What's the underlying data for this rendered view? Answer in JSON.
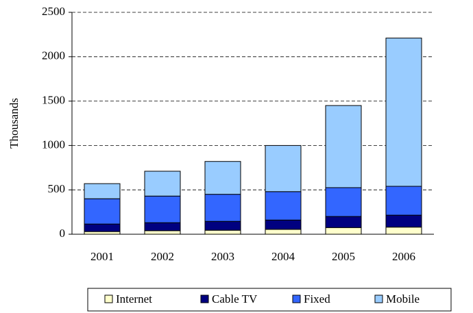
{
  "chart_data": {
    "type": "bar",
    "stacked": true,
    "y_label": "Thousands",
    "categories": [
      "2001",
      "2002",
      "2003",
      "2004",
      "2005",
      "2006"
    ],
    "series": [
      {
        "name": "Internet",
        "color": "#ffffcc",
        "values": [
          30,
          40,
          45,
          55,
          75,
          80
        ]
      },
      {
        "name": "Cable TV",
        "color": "#000080",
        "values": [
          85,
          90,
          100,
          105,
          125,
          135
        ]
      },
      {
        "name": "Fixed",
        "color": "#3366ff",
        "values": [
          285,
          300,
          305,
          320,
          325,
          325
        ]
      },
      {
        "name": "Mobile",
        "color": "#99ccff",
        "values": [
          170,
          280,
          370,
          520,
          925,
          1670
        ]
      }
    ],
    "ylim": [
      0,
      2500
    ],
    "yticks": [
      0,
      500,
      1000,
      1500,
      2000,
      2500
    ],
    "grid": true,
    "legend": "bottom"
  }
}
